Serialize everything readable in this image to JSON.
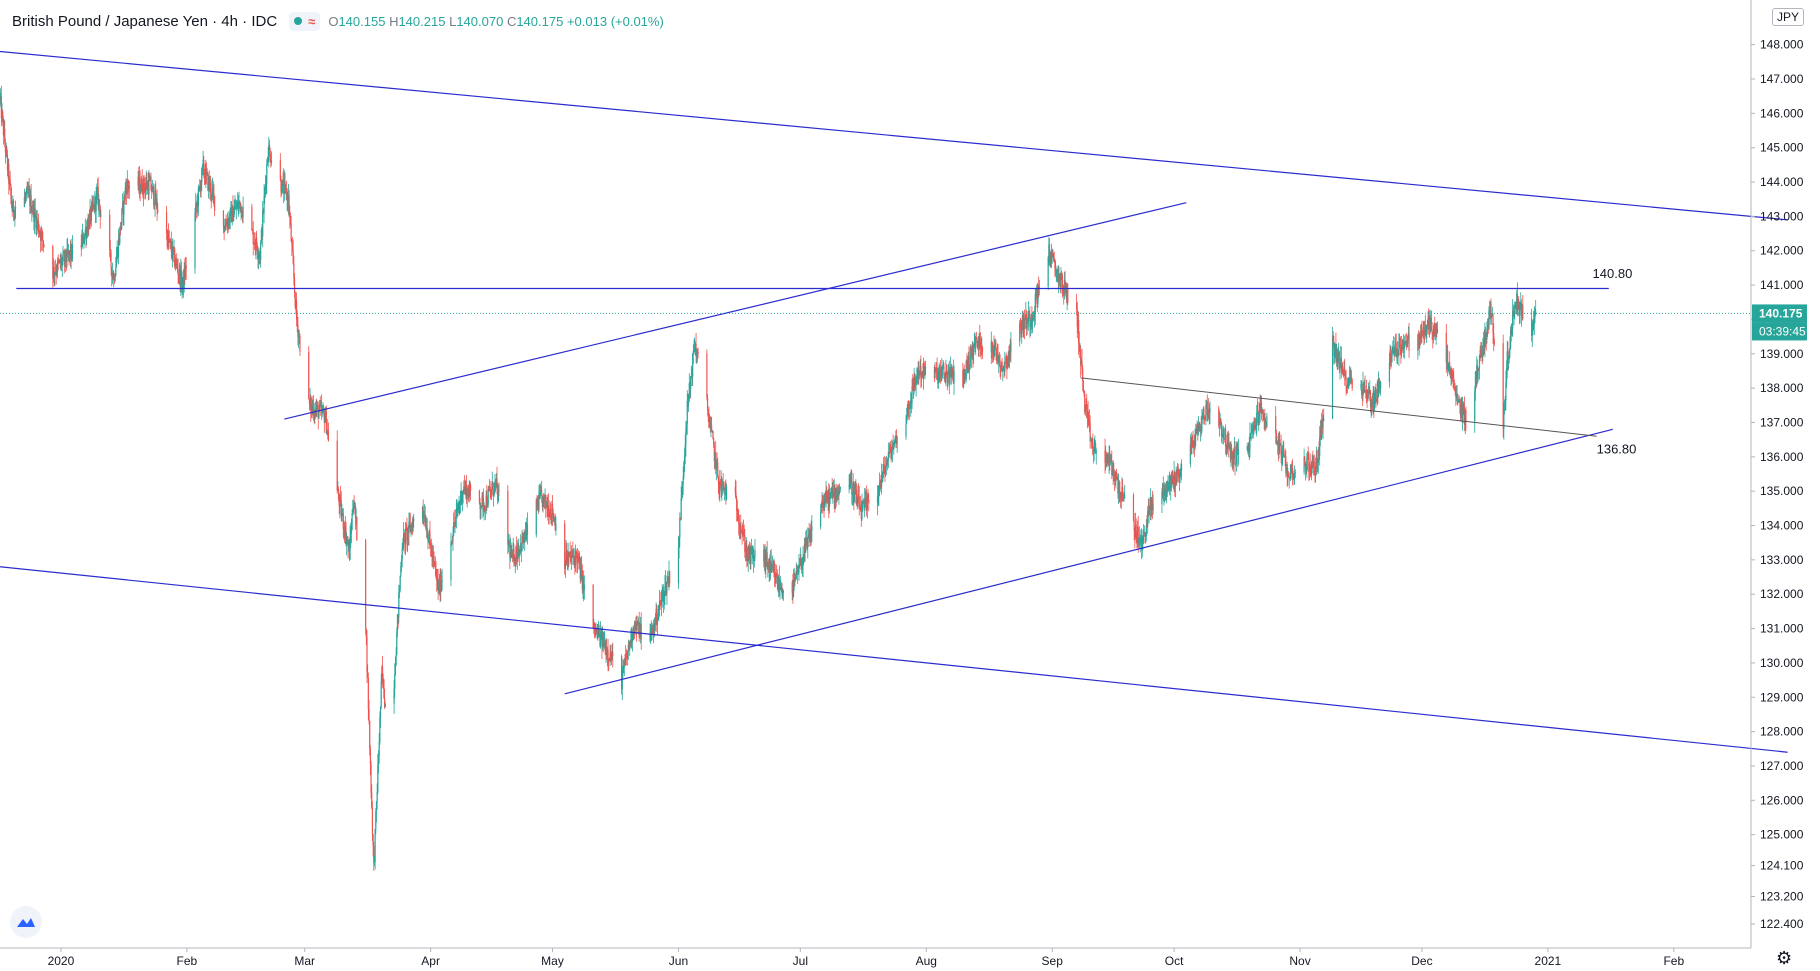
{
  "header": {
    "symbol": "British Pound / Japanese Yen · 4h · IDC",
    "icon_wave": "≈",
    "ohlc": {
      "o_label": "O",
      "o": "140.155",
      "h_label": "H",
      "h": "140.215",
      "l_label": "L",
      "l": "140.070",
      "c_label": "C",
      "c": "140.175",
      "chg": "+0.013 (+0.01%)"
    }
  },
  "currency_badge": "JPY",
  "icons": {
    "settings": "gear-icon",
    "logo": "tradingview-logo-icon"
  },
  "colors": {
    "up": "#26a69a",
    "down": "#ef5350",
    "lines": "#2b2bd0",
    "price_line": "#26a69a",
    "axis_text": "#131722"
  },
  "chart_data": {
    "type": "candlestick",
    "title": "British Pound / Japanese Yen · 4h · IDC",
    "xlabel": "",
    "ylabel": "",
    "x_range": [
      "2019-12-17",
      "2021-02-20"
    ],
    "ylim": [
      121.7,
      149.3
    ],
    "y_ticks": [
      "148.000",
      "147.000",
      "146.000",
      "145.000",
      "144.000",
      "143.000",
      "142.000",
      "141.000",
      "140.000",
      "139.000",
      "138.000",
      "137.000",
      "136.000",
      "135.000",
      "134.000",
      "133.000",
      "132.000",
      "131.000",
      "130.000",
      "129.000",
      "128.000",
      "127.000",
      "126.000",
      "125.000",
      "124.100",
      "123.200",
      "122.400"
    ],
    "x_ticks": [
      {
        "label": "2020",
        "date": "2020-01-01"
      },
      {
        "label": "Feb",
        "date": "2020-02-01"
      },
      {
        "label": "Mar",
        "date": "2020-03-01"
      },
      {
        "label": "Apr",
        "date": "2020-04-01"
      },
      {
        "label": "May",
        "date": "2020-05-01"
      },
      {
        "label": "Jun",
        "date": "2020-06-01"
      },
      {
        "label": "Jul",
        "date": "2020-07-01"
      },
      {
        "label": "Aug",
        "date": "2020-08-01"
      },
      {
        "label": "Sep",
        "date": "2020-09-01"
      },
      {
        "label": "Oct",
        "date": "2020-10-01"
      },
      {
        "label": "Nov",
        "date": "2020-11-01"
      },
      {
        "label": "Dec",
        "date": "2020-12-01"
      },
      {
        "label": "2021",
        "date": "2021-01-01"
      },
      {
        "label": "Feb",
        "date": "2021-02-01"
      }
    ],
    "price_path": [
      [
        "2019-12-17",
        146.4
      ],
      [
        "2019-12-20",
        143.2
      ],
      [
        "2019-12-24",
        143.6
      ],
      [
        "2019-12-30",
        141.4
      ],
      [
        "2020-01-06",
        142.2
      ],
      [
        "2020-01-10",
        143.6
      ],
      [
        "2020-01-14",
        141.2
      ],
      [
        "2020-01-17",
        143.9
      ],
      [
        "2020-01-23",
        143.9
      ],
      [
        "2020-01-31",
        141.0
      ],
      [
        "2020-02-05",
        144.4
      ],
      [
        "2020-02-10",
        142.7
      ],
      [
        "2020-02-14",
        143.4
      ],
      [
        "2020-02-19",
        141.9
      ],
      [
        "2020-02-21",
        145.0
      ],
      [
        "2020-02-24",
        144.0
      ],
      [
        "2020-02-26",
        143.5
      ],
      [
        "2020-02-28",
        140.0
      ],
      [
        "2020-03-02",
        137.5
      ],
      [
        "2020-03-06",
        137.2
      ],
      [
        "2020-03-09",
        135.0
      ],
      [
        "2020-03-12",
        133.2
      ],
      [
        "2020-03-13",
        134.8
      ],
      [
        "2020-03-16",
        131.2
      ],
      [
        "2020-03-18",
        124.0
      ],
      [
        "2020-03-20",
        129.7
      ],
      [
        "2020-03-22",
        127.5
      ],
      [
        "2020-03-25",
        133.5
      ],
      [
        "2020-03-30",
        134.6
      ],
      [
        "2020-04-03",
        132.1
      ],
      [
        "2020-04-09",
        135.1
      ],
      [
        "2020-04-14",
        134.6
      ],
      [
        "2020-04-17",
        135.2
      ],
      [
        "2020-04-21",
        133.0
      ],
      [
        "2020-04-24",
        133.6
      ],
      [
        "2020-04-28",
        134.8
      ],
      [
        "2020-05-01",
        134.4
      ],
      [
        "2020-05-04",
        133.0
      ],
      [
        "2020-05-07",
        133.1
      ],
      [
        "2020-05-11",
        131.0
      ],
      [
        "2020-05-14",
        130.5
      ],
      [
        "2020-05-18",
        129.5
      ],
      [
        "2020-05-21",
        131.1
      ],
      [
        "2020-05-25",
        130.7
      ],
      [
        "2020-05-28",
        131.9
      ],
      [
        "2020-06-01",
        133.4
      ],
      [
        "2020-06-03",
        137.2
      ],
      [
        "2020-06-05",
        139.3
      ],
      [
        "2020-06-08",
        137.5
      ],
      [
        "2020-06-11",
        135.2
      ],
      [
        "2020-06-15",
        134.7
      ],
      [
        "2020-06-18",
        133.1
      ],
      [
        "2020-06-22",
        133.1
      ],
      [
        "2020-06-26",
        132.2
      ],
      [
        "2020-06-29",
        132.1
      ],
      [
        "2020-07-02",
        133.2
      ],
      [
        "2020-07-06",
        134.6
      ],
      [
        "2020-07-09",
        134.9
      ],
      [
        "2020-07-13",
        135.3
      ],
      [
        "2020-07-16",
        134.4
      ],
      [
        "2020-07-20",
        135.0
      ],
      [
        "2020-07-23",
        136.1
      ],
      [
        "2020-07-27",
        137.2
      ],
      [
        "2020-07-30",
        138.5
      ],
      [
        "2020-08-03",
        138.4
      ],
      [
        "2020-08-06",
        138.4
      ],
      [
        "2020-08-10",
        138.3
      ],
      [
        "2020-08-13",
        139.3
      ],
      [
        "2020-08-17",
        139.3
      ],
      [
        "2020-08-20",
        138.6
      ],
      [
        "2020-08-24",
        139.8
      ],
      [
        "2020-08-27",
        140.1
      ],
      [
        "2020-08-31",
        142.0
      ],
      [
        "2020-09-02",
        141.4
      ],
      [
        "2020-09-04",
        140.9
      ],
      [
        "2020-09-07",
        140.2
      ],
      [
        "2020-09-09",
        137.5
      ],
      [
        "2020-09-11",
        136.2
      ],
      [
        "2020-09-15",
        135.9
      ],
      [
        "2020-09-18",
        134.9
      ],
      [
        "2020-09-21",
        134.0
      ],
      [
        "2020-09-23",
        133.4
      ],
      [
        "2020-09-25",
        134.5
      ],
      [
        "2020-09-29",
        135.1
      ],
      [
        "2020-10-02",
        135.5
      ],
      [
        "2020-10-06",
        136.5
      ],
      [
        "2020-10-09",
        137.4
      ],
      [
        "2020-10-12",
        137.1
      ],
      [
        "2020-10-15",
        136.0
      ],
      [
        "2020-10-19",
        136.2
      ],
      [
        "2020-10-22",
        137.4
      ],
      [
        "2020-10-26",
        136.6
      ],
      [
        "2020-10-29",
        135.5
      ],
      [
        "2020-11-02",
        135.8
      ],
      [
        "2020-11-05",
        135.7
      ],
      [
        "2020-11-09",
        139.3
      ],
      [
        "2020-11-12",
        138.3
      ],
      [
        "2020-11-16",
        138.1
      ],
      [
        "2020-11-19",
        137.6
      ],
      [
        "2020-11-23",
        138.9
      ],
      [
        "2020-11-26",
        139.3
      ],
      [
        "2020-11-30",
        139.4
      ],
      [
        "2020-12-03",
        139.9
      ],
      [
        "2020-12-07",
        138.9
      ],
      [
        "2020-12-10",
        137.5
      ],
      [
        "2020-12-12",
        137.1
      ],
      [
        "2020-12-15",
        138.7
      ],
      [
        "2020-12-18",
        140.3
      ],
      [
        "2020-12-21",
        137.0
      ],
      [
        "2020-12-22",
        138.8
      ],
      [
        "2020-12-24",
        140.6
      ],
      [
        "2020-12-28",
        139.7
      ],
      [
        "2020-12-29",
        140.175
      ]
    ],
    "trend_lines": [
      {
        "from": [
          "2019-12-17",
          147.8
        ],
        "to": [
          "2021-03-01",
          142.9
        ]
      },
      {
        "from": [
          "2019-12-17",
          132.8
        ],
        "to": [
          "2021-03-01",
          127.4
        ]
      },
      {
        "from": [
          "2020-02-25",
          137.1
        ],
        "to": [
          "2020-10-04",
          143.4
        ]
      },
      {
        "from": [
          "2020-05-04",
          129.1
        ],
        "to": [
          "2021-01-17",
          136.8
        ]
      },
      {
        "from": [
          "2020-09-08",
          138.3
        ],
        "to": [
          "2021-01-13",
          136.6
        ],
        "style": "grey"
      },
      {
        "from": [
          "2019-12-21",
          140.9
        ],
        "to": [
          "2021-01-16",
          140.9
        ]
      }
    ],
    "annotations": [
      {
        "text": "140.80",
        "x": "2021-01-12",
        "y": 141.2
      },
      {
        "text": "136.80",
        "x": "2021-01-13",
        "y": 136.1
      }
    ],
    "last_price": "140.175",
    "countdown": "03:39:45"
  }
}
